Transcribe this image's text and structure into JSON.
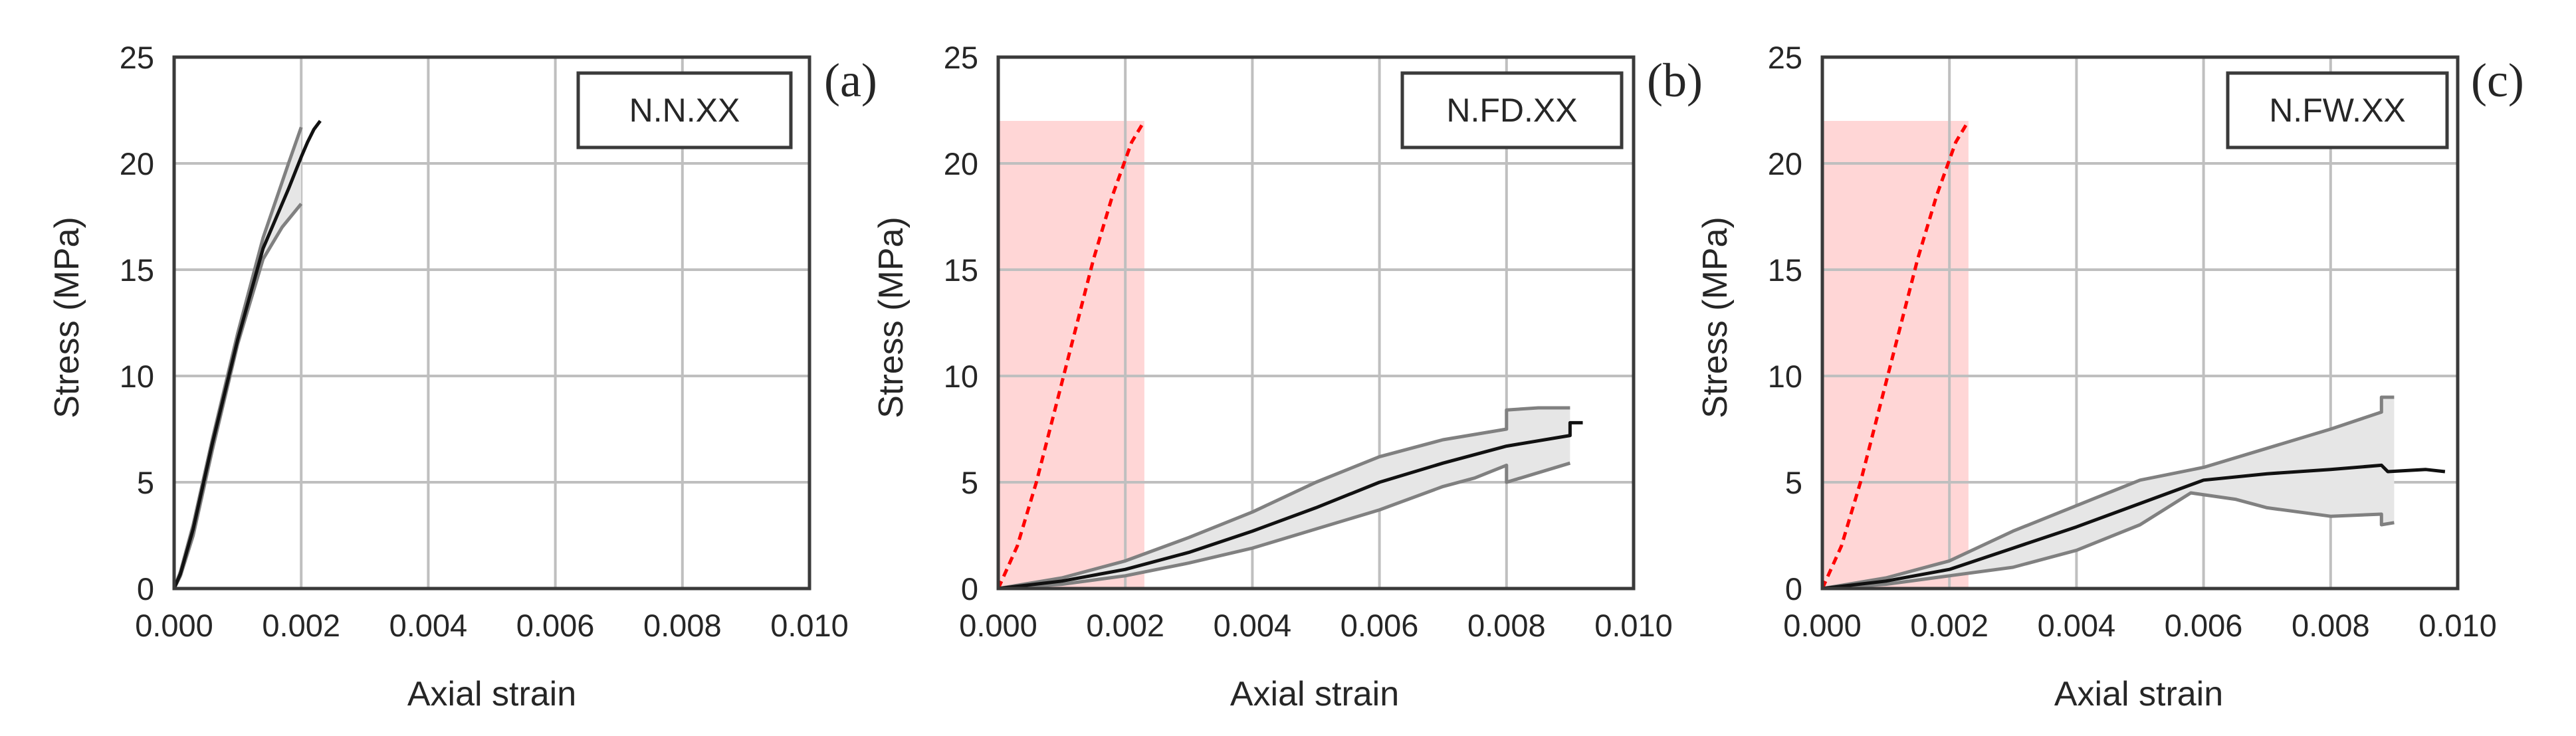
{
  "colors": {
    "grid": "#bfbfbf",
    "frame": "#3a3a3a",
    "mean_line": "#111111",
    "envelope_line": "#808080",
    "envelope_fill": "#e6e6e6",
    "reference_line": "#ff0000",
    "highlight": "#ffd6d6"
  },
  "chart_data": [
    {
      "type": "line",
      "panel_label": "(a)",
      "legend_box": "N.N.XX",
      "xlabel": "Axial strain",
      "ylabel": "Stress (MPa)",
      "xlim": [
        0,
        0.01
      ],
      "ylim": [
        0,
        25
      ],
      "xticks": [
        "0.000",
        "0.002",
        "0.004",
        "0.006",
        "0.008",
        "0.010"
      ],
      "yticks": [
        "0",
        "5",
        "10",
        "15",
        "20",
        "25"
      ],
      "grid": true,
      "series": [
        {
          "role": "envelope-upper",
          "x": [
            0,
            0.0001,
            0.0003,
            0.0006,
            0.001,
            0.0014,
            0.0018,
            0.002
          ],
          "y": [
            0,
            0.8,
            3,
            7,
            12,
            16.5,
            20,
            21.7
          ]
        },
        {
          "role": "envelope-lower",
          "x": [
            0,
            0.0001,
            0.0003,
            0.0006,
            0.001,
            0.0014,
            0.0017,
            0.002
          ],
          "y": [
            0,
            0.6,
            2.5,
            6.5,
            11.5,
            15.5,
            17,
            18.1
          ]
        },
        {
          "role": "mean",
          "x": [
            0,
            0.0001,
            0.0003,
            0.0006,
            0.001,
            0.0014,
            0.0018,
            0.002,
            0.0021,
            0.0022,
            0.0023
          ],
          "y": [
            0,
            0.7,
            2.8,
            6.8,
            11.7,
            16,
            18.8,
            20.3,
            21,
            21.6,
            22
          ]
        }
      ]
    },
    {
      "type": "line",
      "panel_label": "(b)",
      "legend_box": "N.FD.XX",
      "xlabel": "Axial strain",
      "ylabel": "Stress (MPa)",
      "xlim": [
        0,
        0.01
      ],
      "ylim": [
        0,
        25
      ],
      "xticks": [
        "0.000",
        "0.002",
        "0.004",
        "0.006",
        "0.008",
        "0.010"
      ],
      "yticks": [
        "0",
        "5",
        "10",
        "15",
        "20",
        "25"
      ],
      "grid": true,
      "shaded_region": {
        "x": [
          0,
          0.0023
        ],
        "y": [
          0,
          22
        ]
      },
      "series": [
        {
          "role": "reference-dashed",
          "x": [
            0,
            0.0003,
            0.0006,
            0.0009,
            0.0012,
            0.0015,
            0.0018,
            0.0021,
            0.0023
          ],
          "y": [
            0,
            2,
            5,
            8.5,
            12,
            15.5,
            18.5,
            21,
            22
          ]
        },
        {
          "role": "envelope-upper",
          "x": [
            0,
            0.001,
            0.002,
            0.003,
            0.004,
            0.005,
            0.006,
            0.007,
            0.008,
            0.008,
            0.0085,
            0.009
          ],
          "y": [
            0,
            0.5,
            1.3,
            2.4,
            3.6,
            5,
            6.2,
            7,
            7.5,
            8.4,
            8.5,
            8.5
          ]
        },
        {
          "role": "envelope-lower",
          "x": [
            0,
            0.001,
            0.002,
            0.003,
            0.004,
            0.005,
            0.006,
            0.007,
            0.0075,
            0.008,
            0.008,
            0.009
          ],
          "y": [
            0,
            0.2,
            0.6,
            1.2,
            1.9,
            2.8,
            3.7,
            4.8,
            5.2,
            5.8,
            5,
            5.9
          ]
        },
        {
          "role": "mean",
          "x": [
            0,
            0.001,
            0.002,
            0.003,
            0.004,
            0.005,
            0.006,
            0.007,
            0.008,
            0.009,
            0.009,
            0.0092
          ],
          "y": [
            0,
            0.35,
            0.9,
            1.7,
            2.7,
            3.8,
            5,
            5.9,
            6.7,
            7.2,
            7.8,
            7.8
          ]
        }
      ]
    },
    {
      "type": "line",
      "panel_label": "(c)",
      "legend_box": "N.FW.XX",
      "xlabel": "Axial strain",
      "ylabel": "Stress (MPa)",
      "xlim": [
        0,
        0.01
      ],
      "ylim": [
        0,
        25
      ],
      "xticks": [
        "0.000",
        "0.002",
        "0.004",
        "0.006",
        "0.008",
        "0.010"
      ],
      "yticks": [
        "0",
        "5",
        "10",
        "15",
        "20",
        "25"
      ],
      "grid": true,
      "shaded_region": {
        "x": [
          0,
          0.0023
        ],
        "y": [
          0,
          22
        ]
      },
      "series": [
        {
          "role": "reference-dashed",
          "x": [
            0,
            0.0003,
            0.0006,
            0.0009,
            0.0012,
            0.0015,
            0.0018,
            0.0021,
            0.0023
          ],
          "y": [
            0,
            2,
            5,
            8.5,
            12,
            15.5,
            18.5,
            21,
            22
          ]
        },
        {
          "role": "envelope-upper",
          "x": [
            0,
            0.001,
            0.002,
            0.003,
            0.004,
            0.005,
            0.006,
            0.007,
            0.008,
            0.0088,
            0.0088,
            0.009
          ],
          "y": [
            0,
            0.5,
            1.3,
            2.7,
            3.9,
            5.1,
            5.7,
            6.6,
            7.5,
            8.3,
            9,
            9
          ]
        },
        {
          "role": "envelope-lower",
          "x": [
            0,
            0.001,
            0.002,
            0.003,
            0.004,
            0.005,
            0.0058,
            0.0065,
            0.007,
            0.008,
            0.0088,
            0.0088,
            0.009
          ],
          "y": [
            0,
            0.2,
            0.6,
            1,
            1.8,
            3,
            4.5,
            4.2,
            3.8,
            3.4,
            3.5,
            3,
            3.1
          ]
        },
        {
          "role": "mean",
          "x": [
            0,
            0.001,
            0.002,
            0.003,
            0.004,
            0.005,
            0.006,
            0.007,
            0.008,
            0.0088,
            0.0089,
            0.0095,
            0.0098
          ],
          "y": [
            0,
            0.35,
            0.9,
            1.9,
            2.9,
            4,
            5.1,
            5.4,
            5.6,
            5.8,
            5.5,
            5.6,
            5.5
          ]
        }
      ]
    }
  ]
}
